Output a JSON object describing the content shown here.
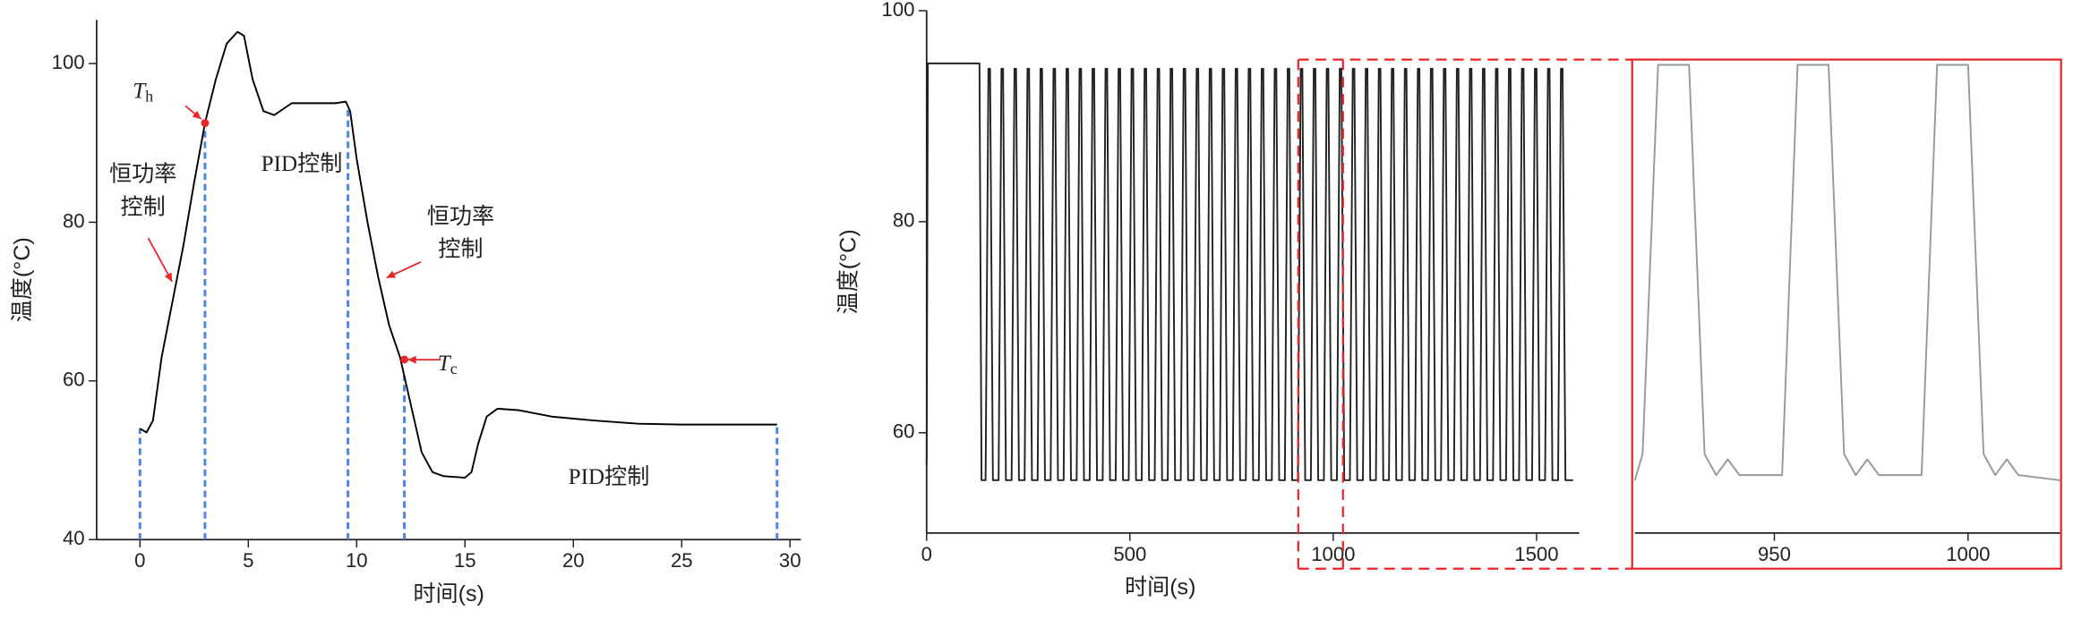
{
  "chart_data": [
    {
      "type": "line",
      "xlabel": "时间(s)",
      "ylabel": "温度(°C)",
      "xlim": [
        -2,
        30.5
      ],
      "ylim": [
        40,
        105.5
      ],
      "xticks": [
        0,
        5,
        10,
        15,
        20,
        25,
        30
      ],
      "yticks": [
        40,
        60,
        80,
        100
      ],
      "series": [
        {
          "color": "#000000",
          "x": [
            0,
            0.3,
            0.6,
            1,
            1.5,
            2,
            2.5,
            3,
            3.5,
            4,
            4.5,
            4.8,
            5.2,
            5.7,
            6.2,
            7,
            8,
            9,
            9.5,
            9.7,
            10,
            10.5,
            11,
            11.5,
            12,
            12.5,
            13,
            13.5,
            14,
            15,
            15.3,
            15.6,
            16,
            16.5,
            17.5,
            19,
            21,
            23,
            25,
            27,
            29.4
          ],
          "values": [
            54,
            53.5,
            55,
            63,
            70,
            77,
            85,
            92.5,
            98,
            102.5,
            104,
            103.5,
            98,
            94,
            93.5,
            95,
            95,
            95,
            95.2,
            94,
            88,
            80,
            73,
            67,
            63,
            57,
            51,
            48.5,
            48,
            47.8,
            48.5,
            52,
            55.5,
            56.5,
            56.3,
            55.5,
            55,
            54.6,
            54.5,
            54.5,
            54.5
          ]
        }
      ],
      "vlines": [
        0,
        3,
        9.6,
        12.2,
        29.4
      ],
      "vline_color": "#4a86e8",
      "markers": [
        {
          "x": 3,
          "y": 92.5
        },
        {
          "x": 12.2,
          "y": 62.7
        }
      ],
      "marker_color": "#e8262a",
      "annotations": [
        {
          "text": "T",
          "sub": "h"
        },
        {
          "lines": [
            "恒功率",
            "控制"
          ]
        },
        {
          "text": "PID控制"
        },
        {
          "lines": [
            "恒功率",
            "控制"
          ]
        },
        {
          "text": "T",
          "sub": "c"
        },
        {
          "text": "PID控制"
        }
      ]
    },
    {
      "type": "line",
      "xlabel": "时间(s)",
      "ylabel": "温度(°C)",
      "xlim": [
        0,
        1605
      ],
      "ylim": [
        50.5,
        100
      ],
      "xticks": [
        0,
        500,
        1000,
        1500
      ],
      "yticks": [
        60,
        80,
        100
      ],
      "series": [
        {
          "color": "#222222",
          "x": [
            0,
            3,
            130,
            135,
            145,
            152,
            156,
            163,
            177,
            184,
            188,
            195,
            209,
            216,
            220,
            227,
            241,
            248,
            252,
            259,
            273,
            280,
            284,
            291,
            305,
            312,
            316,
            323,
            337,
            344,
            348,
            355,
            369,
            376,
            380,
            387,
            401,
            408,
            412,
            419,
            433,
            440,
            444,
            451,
            465,
            472,
            476,
            483,
            497,
            504,
            508,
            515,
            529,
            536,
            540,
            547,
            561,
            568,
            572,
            579,
            593,
            600,
            604,
            611,
            625,
            632,
            636,
            643,
            657,
            664,
            668,
            675,
            689,
            696,
            700,
            707,
            721,
            728,
            732,
            739,
            753,
            760,
            764,
            771,
            785,
            792,
            796,
            803,
            817,
            824,
            828,
            835,
            849,
            856,
            860,
            867,
            881,
            888,
            892,
            899,
            913,
            920,
            924,
            931,
            945,
            952,
            956,
            963,
            977,
            984,
            988,
            995,
            1009,
            1016,
            1020,
            1027,
            1041,
            1048,
            1052,
            1059,
            1073,
            1080,
            1084,
            1091,
            1105,
            1112,
            1116,
            1123,
            1137,
            1144,
            1148,
            1155,
            1169,
            1176,
            1180,
            1187,
            1201,
            1208,
            1212,
            1219,
            1233,
            1240,
            1244,
            1251,
            1265,
            1272,
            1276,
            1283,
            1297,
            1304,
            1308,
            1315,
            1329,
            1336,
            1340,
            1347,
            1361,
            1368,
            1372,
            1379,
            1393,
            1400,
            1404,
            1411,
            1425,
            1432,
            1436,
            1443,
            1457,
            1464,
            1468,
            1475,
            1489,
            1496,
            1500,
            1507,
            1521,
            1528,
            1532,
            1539,
            1553,
            1560,
            1564,
            1571,
            1590
          ],
          "values": [
            57,
            95,
            95,
            55.5,
            55.5,
            94.5,
            94.5,
            55.5,
            55.5,
            94.5,
            94.5,
            55.5,
            55.5,
            94.5,
            94.5,
            55.5,
            55.5,
            94.5,
            94.5,
            55.5,
            55.5,
            94.5,
            94.5,
            55.5,
            55.5,
            94.5,
            94.5,
            55.5,
            55.5,
            94.5,
            94.5,
            55.5,
            55.5,
            94.5,
            94.5,
            55.5,
            55.5,
            94.5,
            94.5,
            55.5,
            55.5,
            94.5,
            94.5,
            55.5,
            55.5,
            94.5,
            94.5,
            55.5,
            55.5,
            94.5,
            94.5,
            55.5,
            55.5,
            94.5,
            94.5,
            55.5,
            55.5,
            94.5,
            94.5,
            55.5,
            55.5,
            94.5,
            94.5,
            55.5,
            55.5,
            94.5,
            94.5,
            55.5,
            55.5,
            94.5,
            94.5,
            55.5,
            55.5,
            94.5,
            94.5,
            55.5,
            55.5,
            94.5,
            94.5,
            55.5,
            55.5,
            94.5,
            94.5,
            55.5,
            55.5,
            94.5,
            94.5,
            55.5,
            55.5,
            94.5,
            94.5,
            55.5,
            55.5,
            94.5,
            94.5,
            55.5,
            55.5,
            94.5,
            94.5,
            55.5,
            55.5,
            94.5,
            94.5,
            55.5,
            55.5,
            94.5,
            94.5,
            55.5,
            55.5,
            94.5,
            94.5,
            55.5,
            55.5,
            94.5,
            94.5,
            55.5,
            55.5,
            94.5,
            94.5,
            55.5,
            55.5,
            94.5,
            94.5,
            55.5,
            55.5,
            94.5,
            94.5,
            55.5,
            55.5,
            94.5,
            94.5,
            55.5,
            55.5,
            94.5,
            94.5,
            55.5,
            55.5,
            94.5,
            94.5,
            55.5,
            55.5,
            94.5,
            94.5,
            55.5,
            55.5,
            94.5,
            94.5,
            55.5,
            55.5,
            94.5,
            94.5,
            55.5,
            55.5,
            94.5,
            94.5,
            55.5,
            55.5,
            94.5,
            94.5,
            55.5,
            55.5,
            94.5,
            94.5,
            55.5,
            55.5,
            94.5,
            94.5,
            55.5,
            55.5,
            94.5,
            94.5,
            55.5,
            55.5,
            94.5,
            94.5,
            55.5,
            55.5,
            94.5,
            94.5,
            55.5,
            55.5,
            94.5,
            94.5,
            55.5,
            55.5
          ]
        }
      ]
    },
    {
      "type": "line",
      "xlim": [
        914,
        1024
      ],
      "ylim": [
        50.5,
        95.5
      ],
      "xticks": [
        950,
        1000
      ],
      "box_color": "#e8262a",
      "series": [
        {
          "color": "#999999",
          "x": [
            914,
            916,
            920,
            928,
            932,
            935,
            938,
            941,
            952,
            956,
            964,
            968,
            971,
            974,
            977,
            988,
            992,
            1000,
            1004,
            1007,
            1010,
            1013,
            1024
          ],
          "values": [
            55.5,
            58,
            95,
            95,
            58,
            56,
            57.5,
            56,
            56,
            95,
            95,
            58,
            56,
            57.5,
            56,
            56,
            95,
            95,
            58,
            56,
            57.5,
            56,
            55.5
          ]
        }
      ]
    }
  ]
}
